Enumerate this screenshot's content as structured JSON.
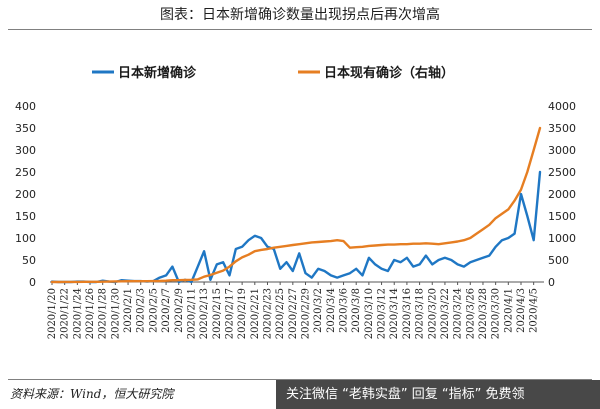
{
  "header": {
    "title": "图表：日本新增确诊数量出现拐点后再次增高"
  },
  "footer": {
    "source": "资料来源：Wind，恒大研究院",
    "watermark": "关注微信 “老韩实盘” 回复 “指标” 免费领"
  },
  "chart_data": {
    "type": "line",
    "x": [
      "2020/1/20",
      "2020/1/21",
      "2020/1/22",
      "2020/1/23",
      "2020/1/24",
      "2020/1/25",
      "2020/1/26",
      "2020/1/27",
      "2020/1/28",
      "2020/1/29",
      "2020/1/30",
      "2020/1/31",
      "2020/2/1",
      "2020/2/2",
      "2020/2/3",
      "2020/2/4",
      "2020/2/5",
      "2020/2/6",
      "2020/2/7",
      "2020/2/8",
      "2020/2/9",
      "2020/2/10",
      "2020/2/11",
      "2020/2/12",
      "2020/2/13",
      "2020/2/14",
      "2020/2/15",
      "2020/2/16",
      "2020/2/17",
      "2020/2/18",
      "2020/2/19",
      "2020/2/20",
      "2020/2/21",
      "2020/2/22",
      "2020/2/23",
      "2020/2/24",
      "2020/2/25",
      "2020/2/26",
      "2020/2/27",
      "2020/2/28",
      "2020/2/29",
      "2020/3/1",
      "2020/3/2",
      "2020/3/3",
      "2020/3/4",
      "2020/3/5",
      "2020/3/6",
      "2020/3/7",
      "2020/3/8",
      "2020/3/9",
      "2020/3/10",
      "2020/3/11",
      "2020/3/12",
      "2020/3/13",
      "2020/3/14",
      "2020/3/15",
      "2020/3/16",
      "2020/3/17",
      "2020/3/18",
      "2020/3/19",
      "2020/3/20",
      "2020/3/21",
      "2020/3/22",
      "2020/3/23",
      "2020/3/24",
      "2020/3/25",
      "2020/3/26",
      "2020/3/27",
      "2020/3/28",
      "2020/3/29",
      "2020/3/30",
      "2020/3/31",
      "2020/4/1",
      "2020/4/2",
      "2020/4/3",
      "2020/4/4",
      "2020/4/5",
      "2020/4/6"
    ],
    "x_tick_labels": [
      "2020/1/20",
      "2020/1/22",
      "2020/1/24",
      "2020/1/26",
      "2020/1/28",
      "2020/1/30",
      "2020/2/1",
      "2020/2/3",
      "2020/2/5",
      "2020/2/7",
      "2020/2/9",
      "2020/2/11",
      "2020/2/13",
      "2020/2/15",
      "2020/2/17",
      "2020/2/19",
      "2020/2/21",
      "2020/2/23",
      "2020/2/25",
      "2020/2/27",
      "2020/2/29",
      "2020/3/2",
      "2020/3/4",
      "2020/3/6",
      "2020/3/8",
      "2020/3/10",
      "2020/3/12",
      "2020/3/14",
      "2020/3/16",
      "2020/3/18",
      "2020/3/20",
      "2020/3/22",
      "2020/3/24",
      "2020/3/26",
      "2020/3/28",
      "2020/3/30",
      "2020/4/1",
      "2020/4/3",
      "2020/4/5"
    ],
    "series": [
      {
        "name": "日本新增确诊",
        "axis": "left",
        "color": "#1f77c4",
        "values": [
          1,
          0,
          0,
          0,
          1,
          1,
          0,
          0,
          3,
          1,
          0,
          4,
          3,
          2,
          2,
          1,
          2,
          10,
          15,
          35,
          0,
          5,
          0,
          35,
          70,
          5,
          40,
          45,
          15,
          75,
          80,
          95,
          105,
          100,
          80,
          75,
          30,
          45,
          25,
          65,
          20,
          10,
          30,
          25,
          15,
          10,
          15,
          20,
          30,
          15,
          55,
          40,
          30,
          25,
          50,
          45,
          55,
          35,
          40,
          60,
          40,
          50,
          55,
          50,
          40,
          35,
          45,
          50,
          55,
          60,
          80,
          95,
          100,
          110,
          200,
          150,
          95,
          250
        ],
        "values_note": ""
      },
      {
        "name": "日本现有确诊（右轴）",
        "axis": "right",
        "color": "#e67e22",
        "values": [
          1,
          1,
          2,
          2,
          3,
          4,
          4,
          4,
          6,
          10,
          14,
          17,
          18,
          19,
          19,
          19,
          20,
          22,
          30,
          40,
          42,
          45,
          50,
          60,
          120,
          160,
          210,
          260,
          350,
          470,
          560,
          620,
          700,
          730,
          750,
          780,
          800,
          820,
          840,
          860,
          880,
          900,
          910,
          920,
          930,
          950,
          930,
          780,
          790,
          800,
          820,
          830,
          840,
          850,
          850,
          860,
          860,
          870,
          870,
          880,
          870,
          860,
          880,
          900,
          920,
          950,
          1000,
          1100,
          1200,
          1300,
          1450,
          1550,
          1650,
          1850,
          2100,
          2500,
          3000,
          3500
        ]
      }
    ],
    "left_axis": {
      "ylim": [
        0,
        400
      ],
      "ticks": [
        0,
        50,
        100,
        150,
        200,
        250,
        300,
        350,
        400
      ]
    },
    "right_axis": {
      "ylim": [
        0,
        4000
      ],
      "ticks": [
        0,
        500,
        1000,
        1500,
        2000,
        2500,
        3000,
        3500,
        4000
      ]
    },
    "legend_position": "top",
    "grid": false
  }
}
